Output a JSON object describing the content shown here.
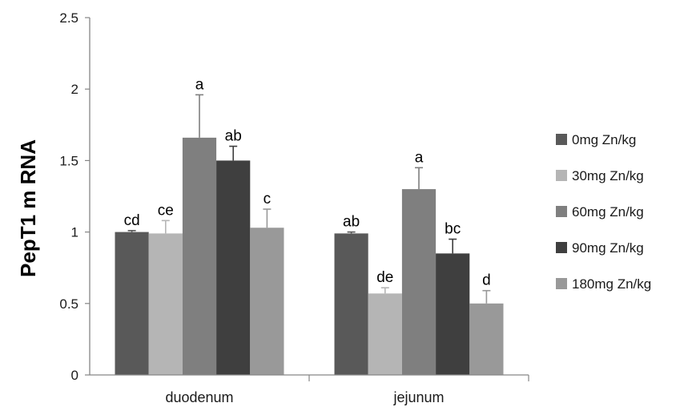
{
  "chart_data": {
    "type": "bar",
    "ylabel": "PepT1 m RNA",
    "xlabel": "",
    "ylim": [
      0,
      2.5
    ],
    "yticks": [
      "0",
      "0.5",
      "1",
      "1.5",
      "2",
      "2.5"
    ],
    "categories": [
      "duodenum",
      "jejunum"
    ],
    "grid": false,
    "legend_position": "right",
    "series": [
      {
        "name": "0mg Zn/kg",
        "color": "#595959",
        "values": [
          1.0,
          0.99
        ],
        "errors": [
          0.01,
          0.01
        ],
        "letters": [
          "cd",
          "ab"
        ]
      },
      {
        "name": "30mg Zn/kg",
        "color": "#b5b5b5",
        "values": [
          0.99,
          0.57
        ],
        "errors": [
          0.09,
          0.04
        ],
        "letters": [
          "ce",
          "de"
        ]
      },
      {
        "name": "60mg Zn/kg",
        "color": "#7f7f7f",
        "values": [
          1.66,
          1.3
        ],
        "errors": [
          0.3,
          0.15
        ],
        "letters": [
          "a",
          "a"
        ]
      },
      {
        "name": "90mg Zn/kg",
        "color": "#3f3f3f",
        "values": [
          1.5,
          0.85
        ],
        "errors": [
          0.1,
          0.1
        ],
        "letters": [
          "ab",
          "bc"
        ]
      },
      {
        "name": "180mg Zn/kg",
        "color": "#999999",
        "values": [
          1.03,
          0.5
        ],
        "errors": [
          0.13,
          0.09
        ],
        "letters": [
          "c",
          "d"
        ]
      }
    ]
  }
}
